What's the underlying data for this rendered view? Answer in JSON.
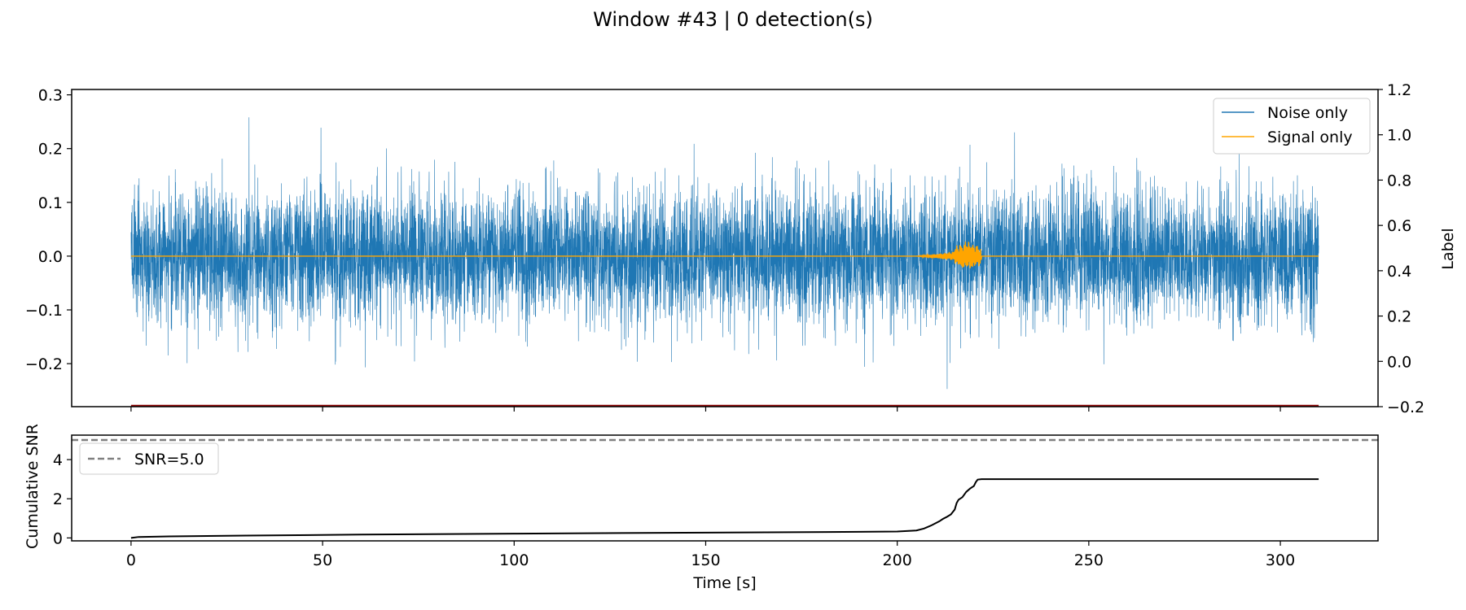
{
  "figure": {
    "title": "Window #43 | 0 detection(s)"
  },
  "colors": {
    "noise": "#1f77b4",
    "signal": "#ffa500",
    "label_line": "#8b0000",
    "cumulative_snr": "#000000",
    "threshold": "#808080",
    "axes": "#000000"
  },
  "chart_data": [
    {
      "panel": "waveform",
      "type": "line",
      "xlabel": "",
      "ylabel": "",
      "xlim": [
        -15.5,
        325.5
      ],
      "ylim": [
        -0.28,
        0.31
      ],
      "yticks": [
        -0.2,
        -0.1,
        0.0,
        0.1,
        0.2,
        0.3
      ],
      "ytick_labels": [
        "−0.2",
        "−0.1",
        "0.0",
        "0.1",
        "0.2",
        "0.3"
      ],
      "secondary_y": {
        "ylabel": "Label",
        "ylim": [
          -0.2,
          1.2
        ],
        "yticks": [
          -0.2,
          0.0,
          0.2,
          0.4,
          0.6,
          0.8,
          1.0,
          1.2
        ],
        "ytick_labels": [
          "−0.2",
          "0.0",
          "0.2",
          "0.4",
          "0.6",
          "0.8",
          "1.0",
          "1.2"
        ],
        "series": [
          {
            "name": "",
            "color": "#8b0000",
            "x": [
              0,
              310
            ],
            "y": [
              -0.2,
              -0.2
            ]
          }
        ]
      },
      "legend": {
        "position": "upper right",
        "entries": [
          "Noise only",
          "Signal only"
        ]
      },
      "series": [
        {
          "name": "Noise only",
          "color": "#1f77b4",
          "description": "dense random noise trace from 0 to 310 s",
          "x_range": [
            0,
            310
          ],
          "amplitude_std": 0.062,
          "envelope_max": 0.28,
          "envelope_min": -0.26
        },
        {
          "name": "Signal only",
          "color": "#ffa500",
          "description": "flat at 0 except a burst between ~205 and ~222 s",
          "x_range": [
            0,
            310
          ],
          "burst": {
            "start": 205,
            "peak_start": 215,
            "end": 222,
            "peak_amplitude": 0.03
          }
        }
      ],
      "grid": false
    },
    {
      "panel": "cumulative_snr",
      "type": "line",
      "xlabel": "Time [s]",
      "ylabel": "Cumulative SNR",
      "xlim": [
        -15.5,
        325.5
      ],
      "ylim": [
        -0.15,
        5.25
      ],
      "xticks": [
        0,
        50,
        100,
        150,
        200,
        250,
        300
      ],
      "yticks": [
        0,
        2,
        4
      ],
      "legend": {
        "position": "upper left",
        "entries": [
          "SNR=5.0"
        ]
      },
      "threshold": {
        "name": "SNR=5.0",
        "value": 5.0,
        "style": "dashed",
        "color": "#808080"
      },
      "series": [
        {
          "name": "",
          "color": "#000000",
          "x": [
            0,
            2,
            10,
            30,
            60,
            100,
            150,
            190,
            200,
            205,
            207,
            209,
            211,
            212,
            213,
            214,
            215,
            215.5,
            216,
            217,
            218,
            219,
            220,
            220.5,
            221,
            222,
            250,
            300,
            310
          ],
          "y": [
            0.0,
            0.05,
            0.08,
            0.12,
            0.17,
            0.22,
            0.27,
            0.31,
            0.33,
            0.38,
            0.48,
            0.65,
            0.85,
            0.98,
            1.08,
            1.2,
            1.45,
            1.78,
            1.95,
            2.08,
            2.35,
            2.52,
            2.65,
            2.85,
            2.98,
            3.0,
            3.0,
            3.0,
            3.0
          ]
        }
      ],
      "grid": false
    }
  ]
}
